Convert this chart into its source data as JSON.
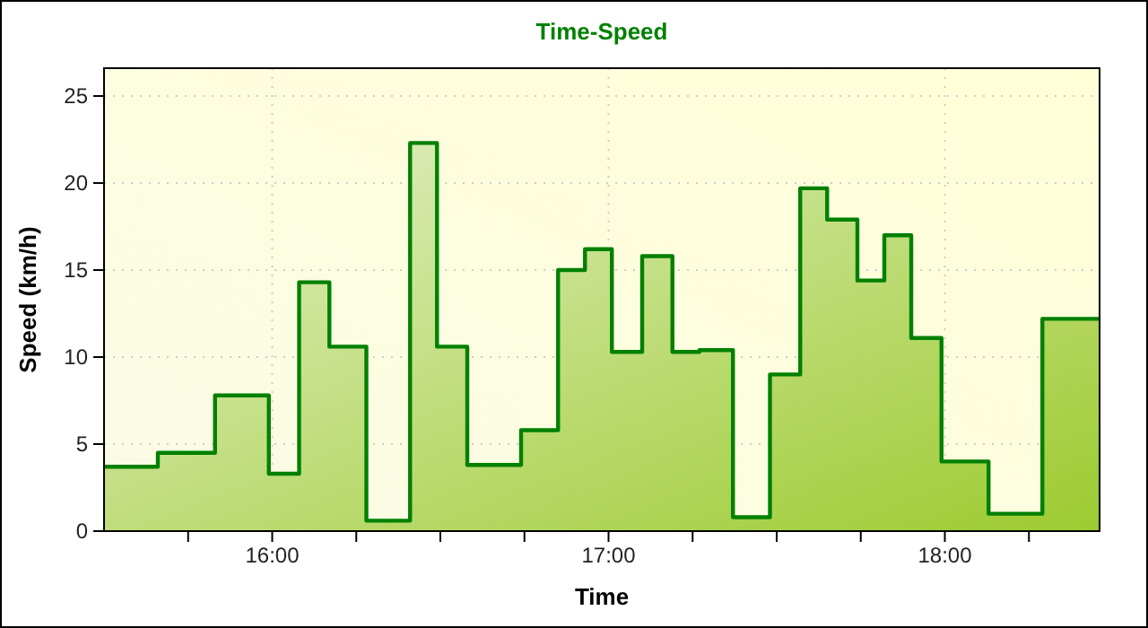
{
  "chart_data": {
    "type": "area",
    "title": "Time-Speed",
    "xlabel": "Time",
    "ylabel": "Speed (km/h)",
    "x": [
      15.5,
      15.66,
      15.66,
      15.83,
      15.83,
      15.99,
      15.99,
      16.08,
      16.08,
      16.17,
      16.17,
      16.28,
      16.28,
      16.41,
      16.41,
      16.49,
      16.49,
      16.58,
      16.58,
      16.74,
      16.74,
      16.85,
      16.85,
      16.93,
      16.93,
      17.01,
      17.01,
      17.1,
      17.1,
      17.19,
      17.19,
      17.27,
      17.27,
      17.37,
      17.37,
      17.48,
      17.48,
      17.57,
      17.57,
      17.65,
      17.65,
      17.74,
      17.74,
      17.82,
      17.82,
      17.9,
      17.9,
      17.99,
      17.99,
      18.13,
      18.13,
      18.29,
      18.29,
      18.46
    ],
    "series": [
      {
        "color": "#008000",
        "values": [
          3.7,
          3.7,
          4.5,
          4.5,
          7.8,
          7.8,
          3.3,
          3.3,
          14.3,
          14.3,
          10.6,
          10.6,
          0.6,
          0.6,
          22.3,
          22.3,
          10.6,
          10.6,
          3.8,
          3.8,
          5.8,
          5.8,
          15.0,
          15.0,
          16.2,
          16.2,
          10.3,
          10.3,
          15.8,
          15.8,
          10.3,
          10.3,
          10.4,
          10.4,
          0.8,
          0.8,
          9.0,
          9.0,
          19.7,
          19.7,
          17.9,
          17.9,
          14.4,
          14.4,
          17.0,
          17.0,
          11.1,
          11.1,
          4.0,
          4.0,
          1.0,
          1.0,
          12.2,
          12.2
        ]
      }
    ],
    "xlim": [
      15.5,
      18.46
    ],
    "xticks": [
      {
        "value": 15.75,
        "label": null
      },
      {
        "value": 16,
        "label": "16:00"
      },
      {
        "value": 16.25,
        "label": null
      },
      {
        "value": 16.5,
        "label": null
      },
      {
        "value": 16.75,
        "label": null
      },
      {
        "value": 17,
        "label": "17:00"
      },
      {
        "value": 17.25,
        "label": null
      },
      {
        "value": 17.5,
        "label": null
      },
      {
        "value": 17.75,
        "label": null
      },
      {
        "value": 18,
        "label": "18:00"
      },
      {
        "value": 18.25,
        "label": null
      }
    ],
    "ylim": [
      0,
      26.6
    ],
    "yticks": [
      0,
      5,
      10,
      15,
      20,
      25
    ],
    "grid": true,
    "line_style": "solid",
    "marker": "none"
  }
}
